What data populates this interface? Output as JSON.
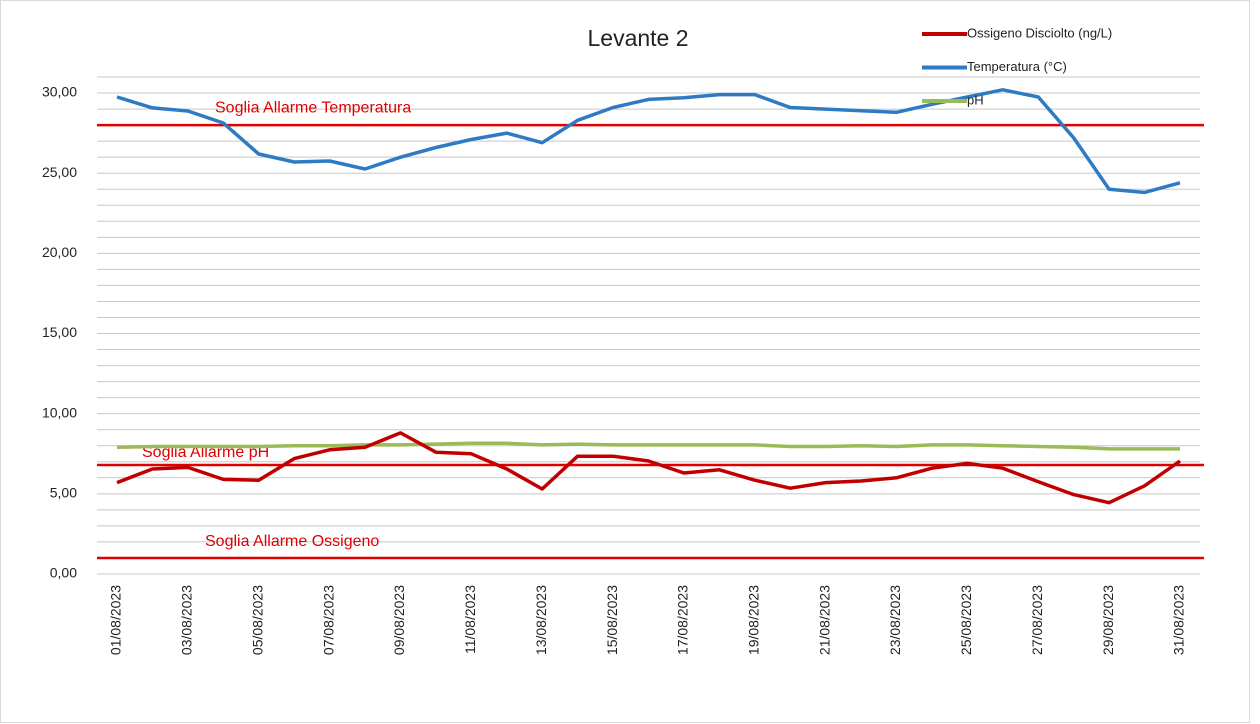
{
  "chart_data": {
    "type": "line",
    "title": "Levante 2",
    "categories": [
      "01/08/2023",
      null,
      "03/08/2023",
      null,
      "05/08/2023",
      null,
      "07/08/2023",
      null,
      "09/08/2023",
      null,
      "11/08/2023",
      null,
      "13/08/2023",
      null,
      "15/08/2023",
      null,
      "17/08/2023",
      null,
      "19/08/2023",
      null,
      "21/08/2023",
      null,
      "23/08/2023",
      null,
      "25/08/2023",
      null,
      "27/08/2023",
      null,
      "29/08/2023",
      null,
      "31/08/2023"
    ],
    "series": [
      {
        "name": "Ossigeno  Disciolto (ng/L)",
        "color": "#c00000",
        "values": [
          5.7,
          6.55,
          6.65,
          5.9,
          5.85,
          7.2,
          7.75,
          7.9,
          8.8,
          7.6,
          7.5,
          6.55,
          5.3,
          7.35,
          7.35,
          7.05,
          6.3,
          6.5,
          5.85,
          5.35,
          5.7,
          5.8,
          6.0,
          6.6,
          6.9,
          6.6,
          5.75,
          4.95,
          4.45,
          5.5,
          7.05
        ]
      },
      {
        "name": "Temperatura (°C)",
        "color": "#2e7bc4",
        "values": [
          29.75,
          29.07,
          28.88,
          28.13,
          26.2,
          25.7,
          25.76,
          25.26,
          26.0,
          26.6,
          27.1,
          27.5,
          26.9,
          28.3,
          29.1,
          29.6,
          29.7,
          29.9,
          29.9,
          29.1,
          29.0,
          28.9,
          28.8,
          29.3,
          29.75,
          30.2,
          29.75,
          27.2,
          24.0,
          23.8,
          24.4
        ]
      },
      {
        "name": "pH",
        "color": "#9bbb59",
        "values": [
          7.9,
          7.95,
          7.95,
          7.95,
          7.95,
          8.0,
          8.0,
          8.05,
          8.05,
          8.1,
          8.15,
          8.15,
          8.05,
          8.1,
          8.05,
          8.05,
          8.05,
          8.05,
          8.05,
          7.95,
          7.95,
          8.0,
          7.95,
          8.05,
          8.05,
          8.0,
          7.95,
          7.9,
          7.8,
          7.8,
          7.8
        ]
      }
    ],
    "thresholds": [
      {
        "label": "Soglia Allarme Temperatura",
        "value": 28,
        "color": "#e00000"
      },
      {
        "label": "Soglia  Allarme pH",
        "value": 6.8,
        "color": "#e00000"
      },
      {
        "label": "Soglia  Allarme Ossigeno",
        "value": 1,
        "color": "#e00000"
      }
    ],
    "ylim": [
      0,
      31
    ],
    "yticks": [
      {
        "value": 0,
        "label": "0,00"
      },
      {
        "value": 5,
        "label": "5,00"
      },
      {
        "value": 10,
        "label": "10,00"
      },
      {
        "value": 15,
        "label": "15,00"
      },
      {
        "value": 20,
        "label": "20,00"
      },
      {
        "value": 25,
        "label": "25,00"
      },
      {
        "value": 30,
        "label": "30,00"
      }
    ],
    "minor_yticks": [
      1,
      2,
      3,
      4,
      6,
      7,
      8,
      9,
      11,
      12,
      13,
      14,
      16,
      17,
      18,
      19,
      21,
      22,
      23,
      24,
      26,
      27,
      28,
      29,
      31
    ],
    "grid": true,
    "legend": "top-right"
  }
}
